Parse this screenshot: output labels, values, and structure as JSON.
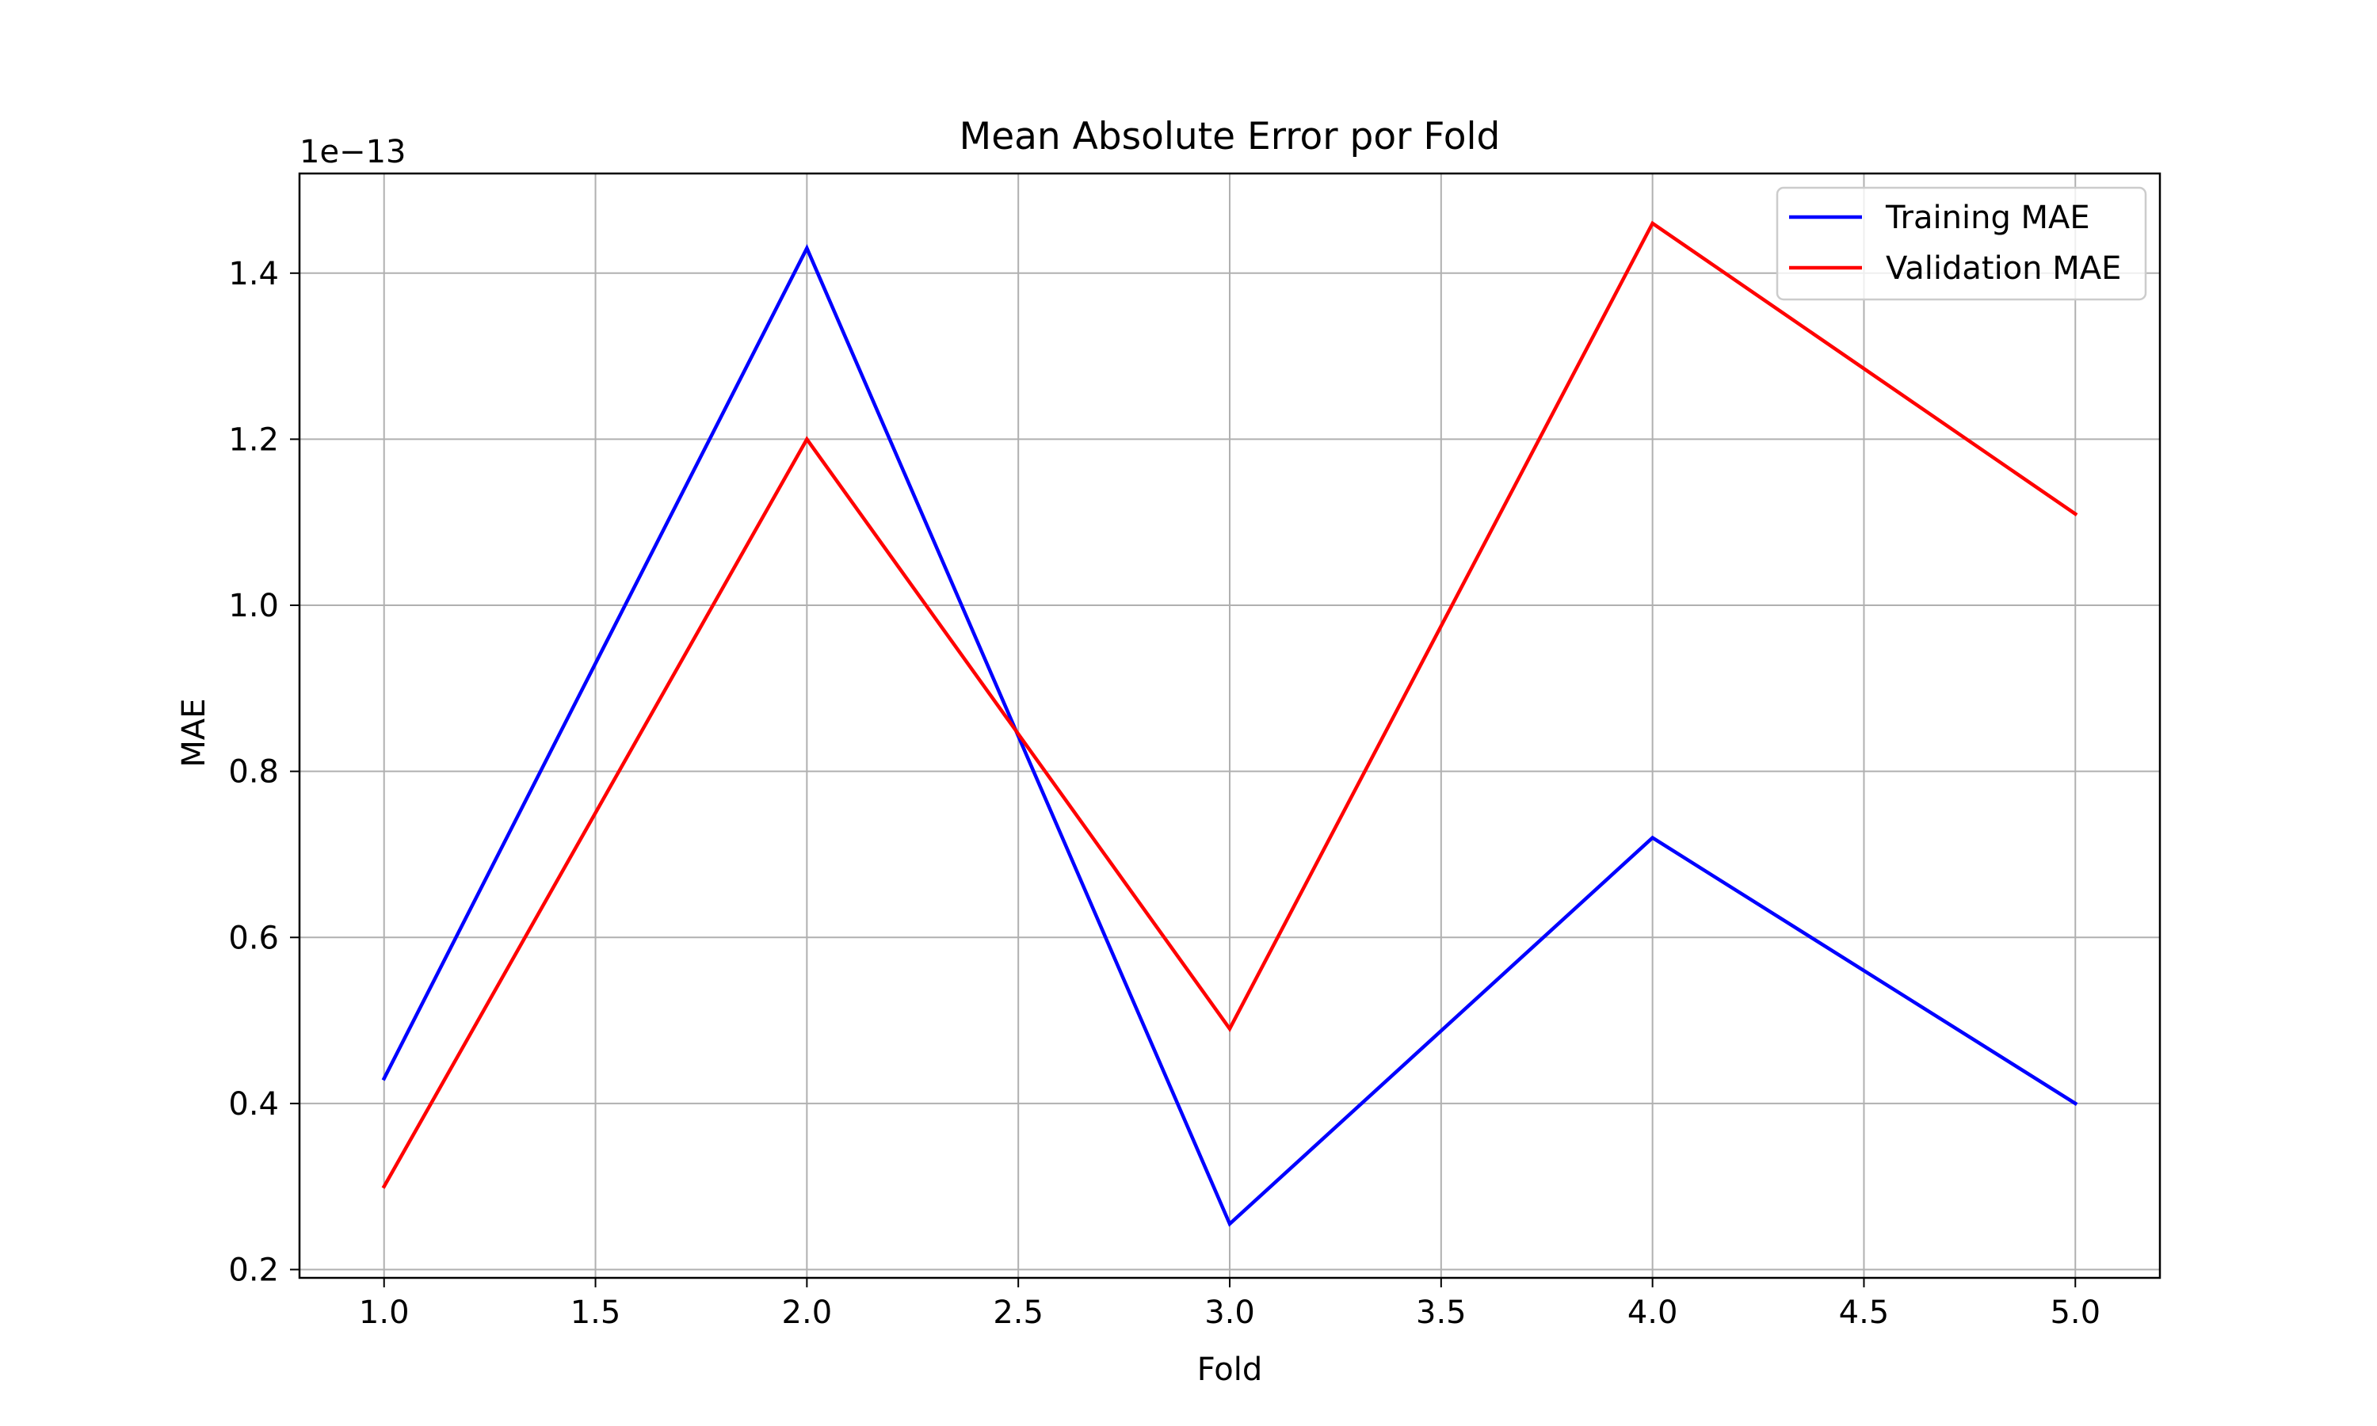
{
  "chart_data": {
    "type": "line",
    "title": "Mean Absolute Error por Fold",
    "xlabel": "Fold",
    "ylabel": "MAE",
    "y_scale_note": "1e−13",
    "xlim": [
      0.8,
      5.2
    ],
    "ylim": [
      0.19,
      1.52
    ],
    "x_ticks": [
      1.0,
      1.5,
      2.0,
      2.5,
      3.0,
      3.5,
      4.0,
      4.5,
      5.0
    ],
    "x_tick_labels": [
      "1.0",
      "1.5",
      "2.0",
      "2.5",
      "3.0",
      "3.5",
      "4.0",
      "4.5",
      "5.0"
    ],
    "y_ticks": [
      0.2,
      0.4,
      0.6,
      0.8,
      1.0,
      1.2,
      1.4
    ],
    "y_tick_labels": [
      "0.2",
      "0.4",
      "0.6",
      "0.8",
      "1.0",
      "1.2",
      "1.4"
    ],
    "grid": true,
    "legend_position": "top-right",
    "x": [
      1,
      2,
      3,
      4,
      5
    ],
    "series": [
      {
        "name": "Training MAE",
        "color": "#0000ff",
        "values": [
          0.43,
          1.43,
          0.255,
          0.72,
          0.4
        ]
      },
      {
        "name": "Validation MAE",
        "color": "#ff0000",
        "values": [
          0.3,
          1.2,
          0.49,
          1.46,
          1.11
        ]
      }
    ]
  }
}
